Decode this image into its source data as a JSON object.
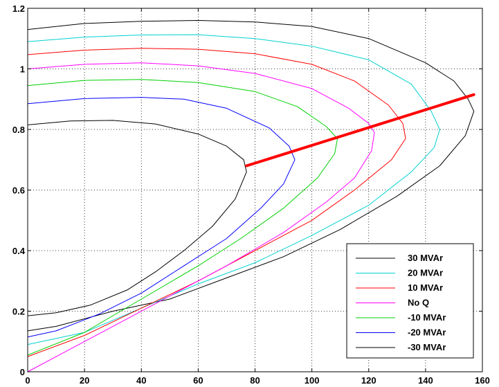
{
  "chart_data": {
    "type": "line",
    "title": "",
    "xlabel": "",
    "ylabel": "",
    "xlim": [
      0,
      160
    ],
    "ylim": [
      0,
      1.2
    ],
    "x_ticks": [
      "0",
      "20",
      "40",
      "60",
      "80",
      "100",
      "120",
      "140",
      "160"
    ],
    "y_ticks": [
      "0",
      "0.2",
      "0.4",
      "0.6",
      "0.8",
      "1",
      "1.2"
    ],
    "grid": true,
    "legend_position": "bottom-right",
    "series": [
      {
        "name": "30 MVAr",
        "color": "#000000",
        "points": [
          [
            0,
            1.13
          ],
          [
            20,
            1.15
          ],
          [
            40,
            1.157
          ],
          [
            60,
            1.16
          ],
          [
            80,
            1.155
          ],
          [
            100,
            1.14
          ],
          [
            120,
            1.1
          ],
          [
            140,
            1.02
          ],
          [
            150,
            0.96
          ],
          [
            155,
            0.9
          ],
          [
            157,
            0.86
          ],
          [
            154,
            0.78
          ],
          [
            145,
            0.68
          ],
          [
            130,
            0.58
          ],
          [
            110,
            0.47
          ],
          [
            90,
            0.38
          ],
          [
            70,
            0.31
          ],
          [
            50,
            0.24
          ],
          [
            30,
            0.2
          ],
          [
            10,
            0.15
          ],
          [
            0,
            0.135
          ]
        ]
      },
      {
        "name": "20 MVAr",
        "color": "#00d0d0",
        "points": [
          [
            0,
            1.09
          ],
          [
            20,
            1.105
          ],
          [
            40,
            1.112
          ],
          [
            60,
            1.113
          ],
          [
            80,
            1.1
          ],
          [
            100,
            1.075
          ],
          [
            120,
            1.03
          ],
          [
            135,
            0.95
          ],
          [
            142,
            0.86
          ],
          [
            145,
            0.8
          ],
          [
            143,
            0.74
          ],
          [
            135,
            0.66
          ],
          [
            120,
            0.55
          ],
          [
            100,
            0.45
          ],
          [
            80,
            0.36
          ],
          [
            60,
            0.29
          ],
          [
            40,
            0.21
          ],
          [
            20,
            0.13
          ],
          [
            0,
            0.09
          ]
        ]
      },
      {
        "name": "10 MVAr",
        "color": "#ff0000",
        "points": [
          [
            0,
            1.047
          ],
          [
            20,
            1.062
          ],
          [
            40,
            1.068
          ],
          [
            60,
            1.065
          ],
          [
            80,
            1.05
          ],
          [
            100,
            1.015
          ],
          [
            115,
            0.96
          ],
          [
            127,
            0.88
          ],
          [
            132,
            0.82
          ],
          [
            133,
            0.77
          ],
          [
            128,
            0.7
          ],
          [
            115,
            0.6
          ],
          [
            100,
            0.5
          ],
          [
            80,
            0.4
          ],
          [
            60,
            0.3
          ],
          [
            40,
            0.21
          ],
          [
            20,
            0.12
          ],
          [
            0,
            0.05
          ]
        ]
      },
      {
        "name": "No Q",
        "color": "#ff00ff",
        "points": [
          [
            0,
            1.0
          ],
          [
            20,
            1.015
          ],
          [
            40,
            1.02
          ],
          [
            60,
            1.01
          ],
          [
            80,
            0.985
          ],
          [
            100,
            0.935
          ],
          [
            113,
            0.87
          ],
          [
            120,
            0.82
          ],
          [
            122,
            0.79
          ],
          [
            121,
            0.73
          ],
          [
            115,
            0.64
          ],
          [
            105,
            0.56
          ],
          [
            90,
            0.46
          ],
          [
            70,
            0.35
          ],
          [
            50,
            0.25
          ],
          [
            30,
            0.15
          ],
          [
            15,
            0.075
          ],
          [
            0,
            0.0
          ]
        ]
      },
      {
        "name": "-10 MVAr",
        "color": "#00d000",
        "points": [
          [
            0,
            0.945
          ],
          [
            20,
            0.962
          ],
          [
            40,
            0.965
          ],
          [
            60,
            0.955
          ],
          [
            80,
            0.925
          ],
          [
            95,
            0.875
          ],
          [
            105,
            0.81
          ],
          [
            109,
            0.77
          ],
          [
            108,
            0.72
          ],
          [
            102,
            0.64
          ],
          [
            90,
            0.54
          ],
          [
            75,
            0.44
          ],
          [
            60,
            0.35
          ],
          [
            40,
            0.24
          ],
          [
            20,
            0.13
          ],
          [
            0,
            0.055
          ]
        ]
      },
      {
        "name": "-20 MVAr",
        "color": "#0000ff",
        "points": [
          [
            0,
            0.885
          ],
          [
            20,
            0.902
          ],
          [
            40,
            0.906
          ],
          [
            55,
            0.9
          ],
          [
            70,
            0.87
          ],
          [
            85,
            0.805
          ],
          [
            92,
            0.745
          ],
          [
            94,
            0.7
          ],
          [
            90,
            0.62
          ],
          [
            82,
            0.54
          ],
          [
            70,
            0.44
          ],
          [
            55,
            0.35
          ],
          [
            40,
            0.26
          ],
          [
            25,
            0.19
          ],
          [
            10,
            0.135
          ],
          [
            0,
            0.115
          ]
        ]
      },
      {
        "name": "-30 MVAr",
        "color": "#000000",
        "points": [
          [
            0,
            0.815
          ],
          [
            15,
            0.828
          ],
          [
            30,
            0.83
          ],
          [
            45,
            0.818
          ],
          [
            60,
            0.785
          ],
          [
            70,
            0.745
          ],
          [
            76,
            0.7
          ],
          [
            77,
            0.66
          ],
          [
            73,
            0.57
          ],
          [
            65,
            0.48
          ],
          [
            55,
            0.4
          ],
          [
            45,
            0.33
          ],
          [
            35,
            0.27
          ],
          [
            22,
            0.22
          ],
          [
            10,
            0.195
          ],
          [
            0,
            0.185
          ]
        ]
      }
    ],
    "red_line": {
      "color": "#ff0000",
      "points": [
        [
          77,
          0.68
        ],
        [
          157,
          0.915
        ]
      ]
    }
  }
}
